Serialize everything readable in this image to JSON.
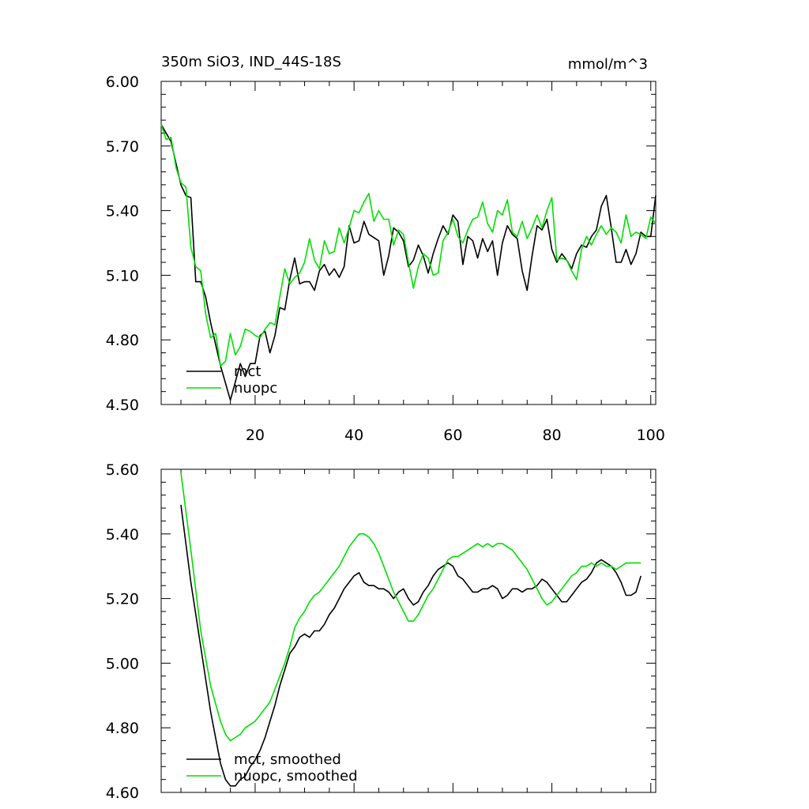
{
  "title_left": "350m SiO3, IND_44S-18S",
  "title_right": "mmol/m^3",
  "colors": {
    "mct": "#000000",
    "nuopc": "#00e000",
    "axis": "#000000"
  },
  "chart_data": [
    {
      "type": "line",
      "id": "top",
      "title": "350m SiO3, IND_44S-18S",
      "units": "mmol/m^3",
      "xlim": [
        1,
        101
      ],
      "ylim": [
        4.5,
        6.0
      ],
      "xticks": [
        20,
        40,
        60,
        80,
        100
      ],
      "xtick_labels": [
        "20",
        "40",
        "60",
        "80",
        "100"
      ],
      "yticks": [
        4.5,
        4.8,
        5.1,
        5.4,
        5.7,
        6.0
      ],
      "ytick_labels": [
        "4.50",
        "4.80",
        "5.10",
        "5.40",
        "5.70",
        "6.00"
      ],
      "legend": [
        "mct",
        "nuopc"
      ],
      "legend_position": "bottom-left",
      "series": [
        {
          "name": "mct",
          "color": "#000000",
          "x": [
            1,
            3,
            5,
            6,
            7,
            8,
            9,
            10,
            11,
            13,
            15,
            17,
            18,
            19,
            20,
            21,
            22,
            23,
            24,
            25,
            26,
            27,
            28,
            29,
            30,
            31,
            32,
            33,
            34,
            35,
            36,
            37,
            38,
            39,
            40,
            41,
            42,
            43,
            45,
            46,
            47,
            48,
            49,
            50,
            51,
            52,
            53,
            54,
            55,
            56,
            57,
            58,
            59,
            60,
            61,
            62,
            63,
            64,
            65,
            66,
            67,
            68,
            69,
            70,
            71,
            72,
            73,
            74,
            75,
            76,
            77,
            78,
            79,
            80,
            81,
            82,
            83,
            84,
            85,
            86,
            87,
            88,
            89,
            90,
            91,
            92,
            93,
            94,
            95,
            96,
            97,
            98,
            99,
            100,
            101
          ],
          "y": [
            5.8,
            5.72,
            5.52,
            5.47,
            5.46,
            5.07,
            5.07,
            5.0,
            4.88,
            4.68,
            4.52,
            4.69,
            4.63,
            4.69,
            4.69,
            4.82,
            4.84,
            4.74,
            4.82,
            4.95,
            4.94,
            5.08,
            5.18,
            5.06,
            5.07,
            5.07,
            5.03,
            5.12,
            5.15,
            5.1,
            5.13,
            5.09,
            5.14,
            5.33,
            5.25,
            5.26,
            5.35,
            5.29,
            5.26,
            5.1,
            5.19,
            5.32,
            5.3,
            5.26,
            5.14,
            5.17,
            5.24,
            5.19,
            5.11,
            5.2,
            5.27,
            5.33,
            5.29,
            5.38,
            5.35,
            5.15,
            5.28,
            5.26,
            5.18,
            5.27,
            5.21,
            5.26,
            5.1,
            5.25,
            5.33,
            5.29,
            5.27,
            5.12,
            5.03,
            5.19,
            5.33,
            5.31,
            5.36,
            5.22,
            5.16,
            5.2,
            5.17,
            5.13,
            5.2,
            5.24,
            5.23,
            5.28,
            5.31,
            5.42,
            5.47,
            5.32,
            5.16,
            5.16,
            5.22,
            5.15,
            5.2,
            5.3,
            5.28,
            5.28,
            5.47
          ]
        },
        {
          "name": "nuopc",
          "color": "#00e000",
          "x": [
            1,
            2,
            3,
            4,
            5,
            6,
            7,
            8,
            9,
            10,
            11,
            12,
            13,
            14,
            15,
            16,
            17,
            18,
            19,
            20,
            21,
            22,
            23,
            24,
            25,
            26,
            27,
            28,
            29,
            30,
            31,
            32,
            33,
            34,
            35,
            36,
            37,
            38,
            39,
            40,
            41,
            42,
            43,
            44,
            45,
            46,
            47,
            48,
            49,
            50,
            51,
            52,
            53,
            54,
            55,
            56,
            57,
            58,
            59,
            60,
            61,
            62,
            63,
            64,
            65,
            66,
            67,
            68,
            69,
            70,
            71,
            72,
            73,
            74,
            75,
            76,
            77,
            78,
            79,
            80,
            81,
            82,
            83,
            84,
            85,
            86,
            87,
            88,
            89,
            90,
            91,
            92,
            93,
            94,
            95,
            96,
            97,
            98,
            99,
            100,
            101
          ],
          "y": [
            5.8,
            5.73,
            5.74,
            5.6,
            5.53,
            5.51,
            5.23,
            5.14,
            5.12,
            4.92,
            4.81,
            4.83,
            4.68,
            4.7,
            4.83,
            4.73,
            4.77,
            4.85,
            4.84,
            4.82,
            4.81,
            4.85,
            4.88,
            4.87,
            5.0,
            5.13,
            5.06,
            5.09,
            5.11,
            5.16,
            5.27,
            5.17,
            5.13,
            5.26,
            5.2,
            5.21,
            5.32,
            5.25,
            5.32,
            5.4,
            5.39,
            5.44,
            5.48,
            5.35,
            5.4,
            5.36,
            5.36,
            5.24,
            5.31,
            5.29,
            5.16,
            5.04,
            5.14,
            5.2,
            5.18,
            5.1,
            5.11,
            5.26,
            5.3,
            5.36,
            5.28,
            5.25,
            5.31,
            5.36,
            5.37,
            5.44,
            5.34,
            5.3,
            5.4,
            5.38,
            5.45,
            5.3,
            5.28,
            5.35,
            5.27,
            5.32,
            5.38,
            5.32,
            5.4,
            5.46,
            5.17,
            5.18,
            5.17,
            5.12,
            5.08,
            5.22,
            5.28,
            5.24,
            5.29,
            5.33,
            5.29,
            5.32,
            5.3,
            5.25,
            5.38,
            5.28,
            5.3,
            5.29,
            5.27,
            5.37,
            5.34
          ]
        }
      ]
    },
    {
      "type": "line",
      "id": "bottom",
      "xlim": [
        1,
        101
      ],
      "ylim": [
        4.6,
        5.6
      ],
      "xticks": [
        20,
        40,
        60,
        80,
        100
      ],
      "yticks": [
        4.6,
        4.8,
        5.0,
        5.2,
        5.4,
        5.6
      ],
      "ytick_labels": [
        "4.60",
        "4.80",
        "5.00",
        "5.20",
        "5.40",
        "5.60"
      ],
      "legend": [
        "mct, smoothed",
        "nuopc, smoothed"
      ],
      "legend_position": "bottom-left",
      "series": [
        {
          "name": "mct, smoothed",
          "color": "#000000",
          "x": [
            5,
            7,
            9,
            11,
            13,
            14,
            15,
            16,
            17,
            18,
            19,
            20,
            21,
            22,
            23,
            24,
            25,
            26,
            27,
            28,
            29,
            30,
            31,
            32,
            33,
            34,
            35,
            36,
            37,
            38,
            39,
            40,
            41,
            42,
            43,
            44,
            45,
            46,
            47,
            48,
            49,
            50,
            51,
            52,
            53,
            54,
            55,
            56,
            57,
            58,
            59,
            60,
            61,
            62,
            63,
            64,
            65,
            66,
            67,
            68,
            69,
            70,
            71,
            72,
            73,
            74,
            75,
            76,
            77,
            78,
            79,
            80,
            81,
            82,
            83,
            84,
            85,
            86,
            87,
            88,
            89,
            90,
            91,
            92,
            93,
            94,
            95,
            96,
            97,
            98
          ],
          "y": [
            5.49,
            5.25,
            5.05,
            4.85,
            4.69,
            4.64,
            4.62,
            4.62,
            4.64,
            4.65,
            4.68,
            4.7,
            4.73,
            4.77,
            4.82,
            4.87,
            4.93,
            4.98,
            5.03,
            5.05,
            5.08,
            5.09,
            5.08,
            5.1,
            5.1,
            5.12,
            5.15,
            5.17,
            5.2,
            5.23,
            5.25,
            5.27,
            5.28,
            5.25,
            5.24,
            5.24,
            5.23,
            5.23,
            5.22,
            5.2,
            5.22,
            5.23,
            5.2,
            5.18,
            5.19,
            5.22,
            5.24,
            5.27,
            5.29,
            5.3,
            5.31,
            5.3,
            5.27,
            5.26,
            5.24,
            5.22,
            5.22,
            5.23,
            5.23,
            5.24,
            5.23,
            5.2,
            5.21,
            5.23,
            5.23,
            5.22,
            5.23,
            5.23,
            5.24,
            5.26,
            5.25,
            5.23,
            5.21,
            5.19,
            5.19,
            5.21,
            5.23,
            5.25,
            5.26,
            5.28,
            5.31,
            5.32,
            5.31,
            5.3,
            5.28,
            5.25,
            5.21,
            5.21,
            5.22,
            5.27
          ]
        },
        {
          "name": "nuopc, smoothed",
          "color": "#00e000",
          "x": [
            5,
            7,
            9,
            11,
            13,
            14,
            15,
            16,
            17,
            18,
            19,
            20,
            21,
            22,
            23,
            24,
            25,
            26,
            27,
            28,
            29,
            30,
            31,
            32,
            33,
            34,
            35,
            36,
            37,
            38,
            39,
            40,
            41,
            42,
            43,
            44,
            45,
            46,
            47,
            48,
            49,
            50,
            51,
            52,
            53,
            54,
            55,
            56,
            57,
            58,
            59,
            60,
            61,
            62,
            63,
            64,
            65,
            66,
            67,
            68,
            69,
            70,
            71,
            72,
            73,
            74,
            75,
            76,
            77,
            78,
            79,
            80,
            81,
            82,
            83,
            84,
            85,
            86,
            87,
            88,
            89,
            90,
            91,
            92,
            93,
            94,
            95,
            96,
            97,
            98
          ],
          "y": [
            5.59,
            5.35,
            5.1,
            4.93,
            4.82,
            4.78,
            4.76,
            4.77,
            4.78,
            4.8,
            4.81,
            4.82,
            4.84,
            4.86,
            4.88,
            4.92,
            4.96,
            5.0,
            5.05,
            5.11,
            5.14,
            5.16,
            5.19,
            5.21,
            5.22,
            5.24,
            5.26,
            5.28,
            5.3,
            5.33,
            5.36,
            5.38,
            5.4,
            5.4,
            5.39,
            5.37,
            5.34,
            5.3,
            5.26,
            5.22,
            5.19,
            5.16,
            5.13,
            5.13,
            5.15,
            5.18,
            5.21,
            5.23,
            5.26,
            5.29,
            5.32,
            5.33,
            5.33,
            5.34,
            5.35,
            5.36,
            5.37,
            5.36,
            5.37,
            5.36,
            5.37,
            5.37,
            5.36,
            5.35,
            5.33,
            5.31,
            5.29,
            5.26,
            5.23,
            5.2,
            5.18,
            5.19,
            5.21,
            5.23,
            5.25,
            5.27,
            5.28,
            5.3,
            5.3,
            5.31,
            5.3,
            5.31,
            5.3,
            5.3,
            5.29,
            5.3,
            5.31,
            5.31,
            5.31,
            5.31
          ]
        }
      ]
    }
  ]
}
